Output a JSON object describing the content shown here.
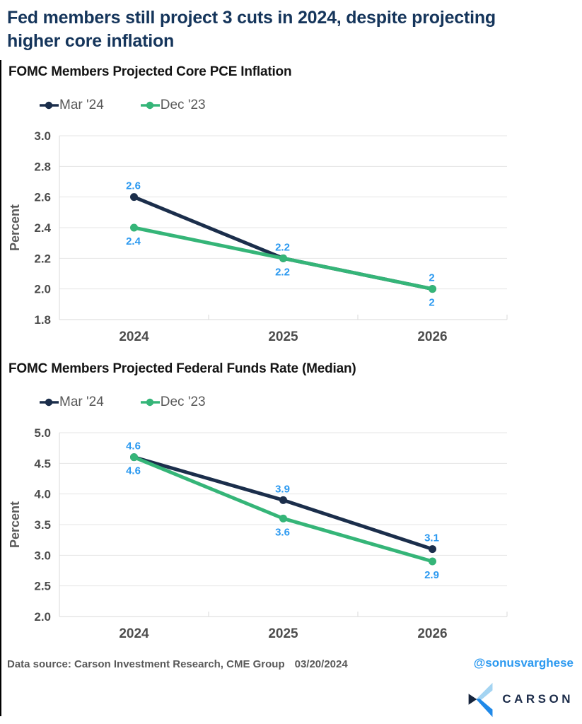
{
  "header": {
    "title": "Fed members still project 3 cuts in 2024, despite projecting higher core inflation"
  },
  "chart_data": [
    {
      "type": "line",
      "title": "FOMC Members Projected Core PCE Inflation",
      "categories": [
        "2024",
        "2025",
        "2026"
      ],
      "series": [
        {
          "name": "Mar '24",
          "color": "#1b2e4b",
          "values": [
            2.6,
            2.2,
            2.0
          ],
          "labels": [
            "2.6",
            "2.2",
            "2"
          ],
          "label_position": "above"
        },
        {
          "name": "Dec '23",
          "color": "#35b578",
          "values": [
            2.4,
            2.2,
            2.0
          ],
          "labels": [
            "2.4",
            "2.2",
            "2"
          ],
          "label_position": "below"
        }
      ],
      "xlabel": "",
      "ylabel": "Percent",
      "ylim": [
        1.8,
        3.0
      ],
      "yticks": [
        "3.0",
        "2.8",
        "2.6",
        "2.4",
        "2.2",
        "2.0",
        "1.8"
      ],
      "grid": true,
      "legend_position": "top",
      "data_label_color": "#2b99f0"
    },
    {
      "type": "line",
      "title": "FOMC Members Projected Federal Funds Rate (Median)",
      "categories": [
        "2024",
        "2025",
        "2026"
      ],
      "series": [
        {
          "name": "Mar '24",
          "color": "#1b2e4b",
          "values": [
            4.6,
            3.9,
            3.1
          ],
          "labels": [
            "4.6",
            "3.9",
            "3.1"
          ],
          "label_position": "above"
        },
        {
          "name": "Dec '23",
          "color": "#35b578",
          "values": [
            4.6,
            3.6,
            2.9
          ],
          "labels": [
            "4.6",
            "3.6",
            "2.9"
          ],
          "label_position": "below"
        }
      ],
      "xlabel": "",
      "ylabel": "Percent",
      "ylim": [
        2.0,
        5.0
      ],
      "yticks": [
        "5.0",
        "4.5",
        "4.0",
        "3.5",
        "3.0",
        "2.5",
        "2.0"
      ],
      "grid": true,
      "legend_position": "top",
      "data_label_color": "#2b99f0"
    }
  ],
  "footer": {
    "source_label": "Data source: Carson Investment Research, CME Group",
    "date": "03/20/2024",
    "handle": "@sonusvarghese",
    "brand": "CARSON"
  },
  "colors": {
    "title_navy": "#15355b",
    "axis_text": "#4d4d4d",
    "secondary_text": "#595959",
    "gridline": "#e4e4e4",
    "axis_line": "#d9d9d9",
    "data_label_blue": "#2b99f0",
    "series_navy": "#1b2e4b",
    "series_green": "#35b578",
    "handle_blue": "#2b99f0",
    "brand_navy": "#1b2b49",
    "logo_light_blue": "#a4d4f2",
    "logo_bright_blue": "#2089e8",
    "logo_dark_navy": "#16243c"
  }
}
